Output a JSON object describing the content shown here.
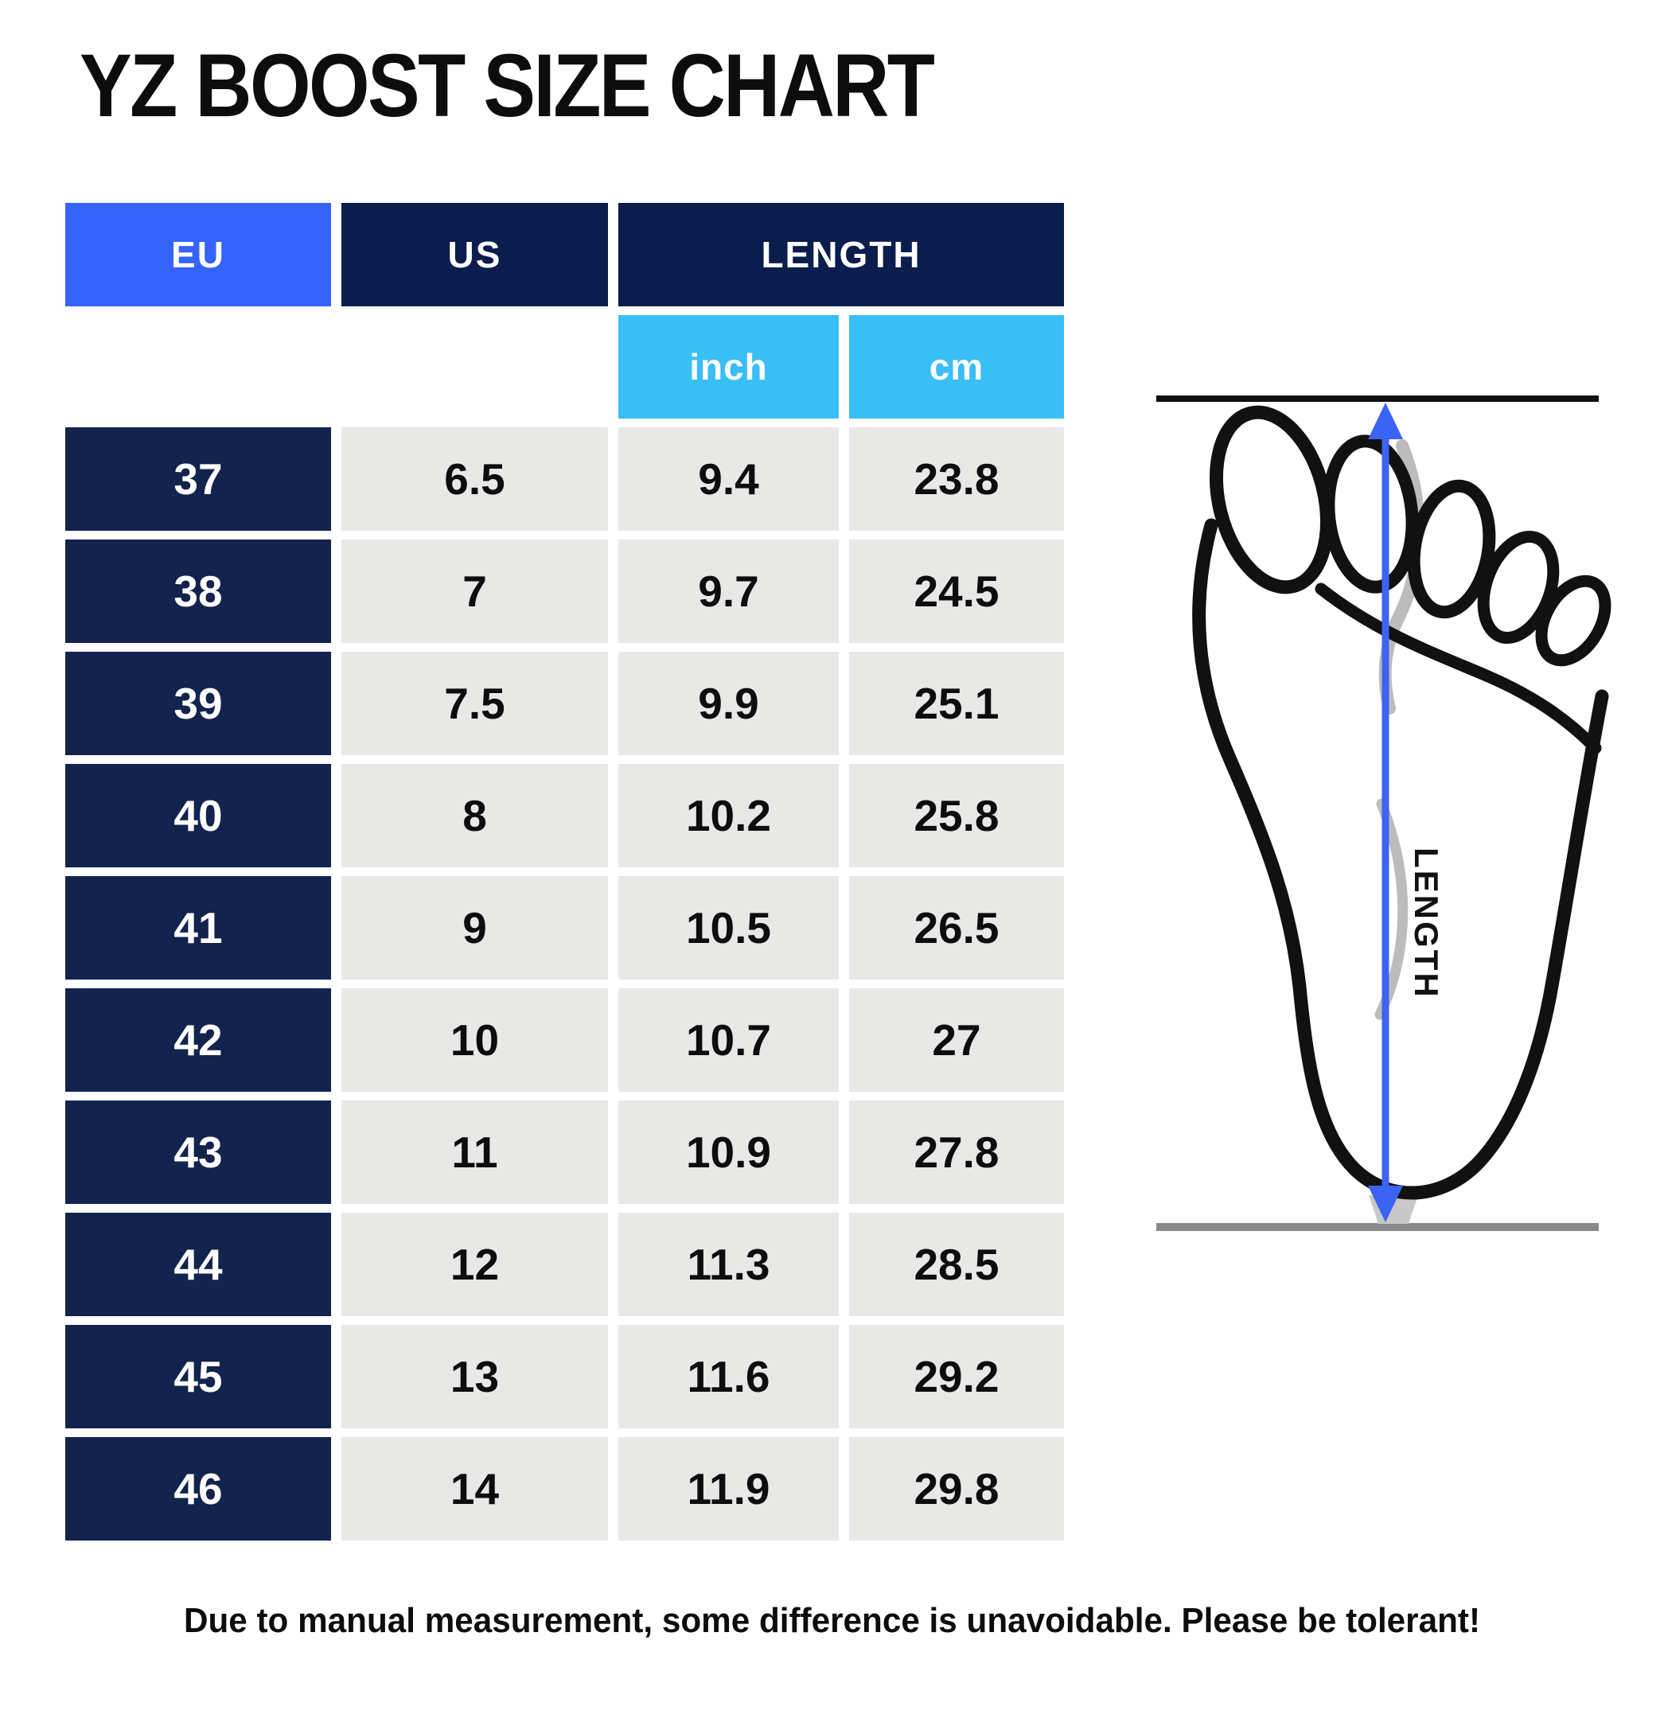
{
  "title": "YZ BOOST SIZE CHART",
  "table": {
    "headers": {
      "eu": "EU",
      "us": "US",
      "length": "LENGTH"
    },
    "subheaders": {
      "inch": "inch",
      "cm": "cm"
    },
    "rows": [
      {
        "eu": "37",
        "us": "6.5",
        "inch": "9.4",
        "cm": "23.8"
      },
      {
        "eu": "38",
        "us": "7",
        "inch": "9.7",
        "cm": "24.5"
      },
      {
        "eu": "39",
        "us": "7.5",
        "inch": "9.9",
        "cm": "25.1"
      },
      {
        "eu": "40",
        "us": "8",
        "inch": "10.2",
        "cm": "25.8"
      },
      {
        "eu": "41",
        "us": "9",
        "inch": "10.5",
        "cm": "26.5"
      },
      {
        "eu": "42",
        "us": "10",
        "inch": "10.7",
        "cm": "27"
      },
      {
        "eu": "43",
        "us": "11",
        "inch": "10.9",
        "cm": "27.8"
      },
      {
        "eu": "44",
        "us": "12",
        "inch": "11.3",
        "cm": "28.5"
      },
      {
        "eu": "45",
        "us": "13",
        "inch": "11.6",
        "cm": "29.2"
      },
      {
        "eu": "46",
        "us": "14",
        "inch": "11.9",
        "cm": "29.8"
      }
    ]
  },
  "chart_data": {
    "type": "table",
    "title": "YZ BOOST SIZE CHART",
    "columns": [
      "EU",
      "US",
      "LENGTH inch",
      "LENGTH cm"
    ],
    "rows": [
      [
        37,
        6.5,
        9.4,
        23.8
      ],
      [
        38,
        7,
        9.7,
        24.5
      ],
      [
        39,
        7.5,
        9.9,
        25.1
      ],
      [
        40,
        8,
        10.2,
        25.8
      ],
      [
        41,
        9,
        10.5,
        26.5
      ],
      [
        42,
        10,
        10.7,
        27
      ],
      [
        43,
        11,
        10.9,
        27.8
      ],
      [
        44,
        12,
        11.3,
        28.5
      ],
      [
        45,
        13,
        11.6,
        29.2
      ],
      [
        46,
        14,
        11.9,
        29.8
      ]
    ]
  },
  "diagram": {
    "length_label": "LENGTH"
  },
  "footer": {
    "note": "Due to manual measurement, some difference is unavoidable. Please be tolerant!"
  },
  "colors": {
    "eu_header_blue": "#3563FB",
    "header_navy": "#0A1D4C",
    "row_navy": "#12234E",
    "subheader_light_blue": "#39BEF5",
    "cell_gray": "#E8E8E7",
    "arrow_blue": "#3B63F5",
    "text_black": "#0d0d0d"
  }
}
